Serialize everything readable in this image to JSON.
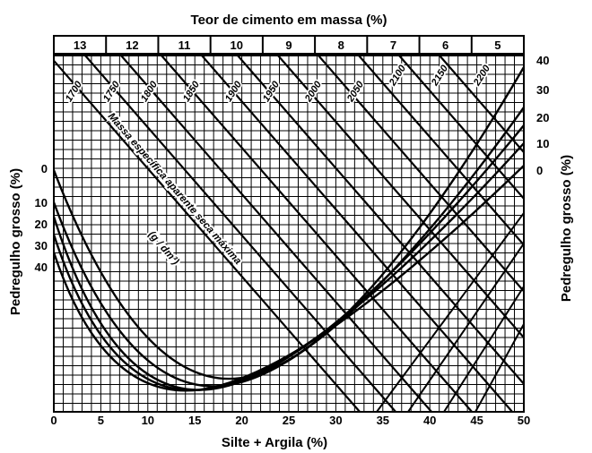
{
  "top_axis": {
    "title": "Teor de cimento em massa (%)",
    "bands": [
      "13",
      "12",
      "11",
      "10",
      "9",
      "8",
      "7",
      "6",
      "5"
    ]
  },
  "bottom_axis": {
    "title": "Silte + Argila (%)",
    "ticks": [
      "0",
      "5",
      "10",
      "15",
      "20",
      "25",
      "30",
      "35",
      "40",
      "45",
      "50"
    ]
  },
  "left_axis": {
    "title": "Pedregulho grosso (%)",
    "ticks": [
      "0",
      "10",
      "20",
      "30",
      "40"
    ]
  },
  "right_axis": {
    "title": "Pedregulho grosso (%)",
    "ticks": [
      "40",
      "30",
      "20",
      "10",
      "0"
    ]
  },
  "curve_family_title": "Massa específica aparente seca máxima",
  "curve_family_unit": "(g / dm³)",
  "density_isolines": [
    "1700",
    "1750",
    "1800",
    "1850",
    "1900",
    "1950",
    "2000",
    "2050",
    "2100",
    "2150",
    "2200"
  ]
}
